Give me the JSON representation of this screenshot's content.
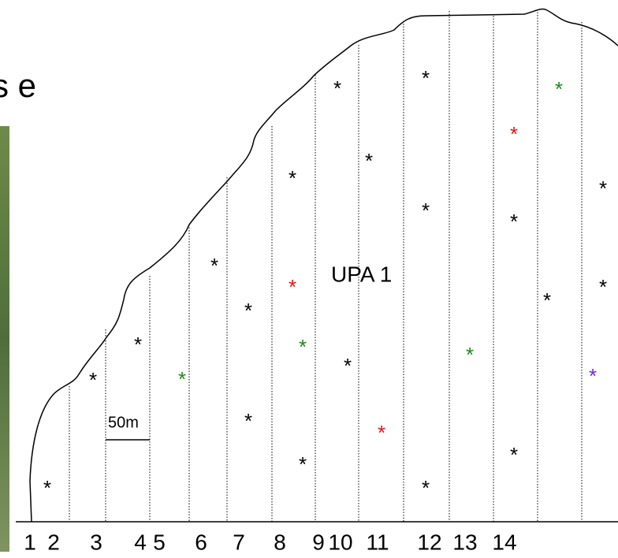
{
  "heading": "s e",
  "area_label": "UPA 1",
  "scale_label": "50m",
  "strip_numbers": [
    "1",
    "2",
    "3",
    "4",
    "5",
    "6",
    "7",
    "8",
    "9",
    "10",
    "11",
    "12",
    "13",
    "14"
  ],
  "markers": [
    {
      "symbol": "*",
      "color": "#000000"
    },
    {
      "symbol": "*",
      "color": "#000000"
    },
    {
      "symbol": "*",
      "color": "#000000"
    },
    {
      "symbol": "*",
      "color": "#1a8a1a"
    },
    {
      "symbol": "*",
      "color": "#000000"
    },
    {
      "symbol": "*",
      "color": "#000000"
    },
    {
      "symbol": "*",
      "color": "#000000"
    },
    {
      "symbol": "*",
      "color": "#000000"
    },
    {
      "symbol": "*",
      "color": "#ee1111"
    },
    {
      "symbol": "*",
      "color": "#1a8a1a"
    },
    {
      "symbol": "*",
      "color": "#000000"
    },
    {
      "symbol": "*",
      "color": "#000000"
    },
    {
      "symbol": "*",
      "color": "#000000"
    },
    {
      "symbol": "*",
      "color": "#000000"
    },
    {
      "symbol": "*",
      "color": "#ee1111"
    },
    {
      "symbol": "*",
      "color": "#000000"
    },
    {
      "symbol": "*",
      "color": "#000000"
    },
    {
      "symbol": "*",
      "color": "#000000"
    },
    {
      "symbol": "*",
      "color": "#1a8a1a"
    },
    {
      "symbol": "*",
      "color": "#ee1111"
    },
    {
      "symbol": "*",
      "color": "#000000"
    },
    {
      "symbol": "*",
      "color": "#000000"
    },
    {
      "symbol": "*",
      "color": "#000000"
    },
    {
      "symbol": "*",
      "color": "#1a8a1a"
    },
    {
      "symbol": "*",
      "color": "#7722ee"
    },
    {
      "symbol": "*",
      "color": "#000000"
    },
    {
      "symbol": "*",
      "color": "#000000"
    }
  ]
}
